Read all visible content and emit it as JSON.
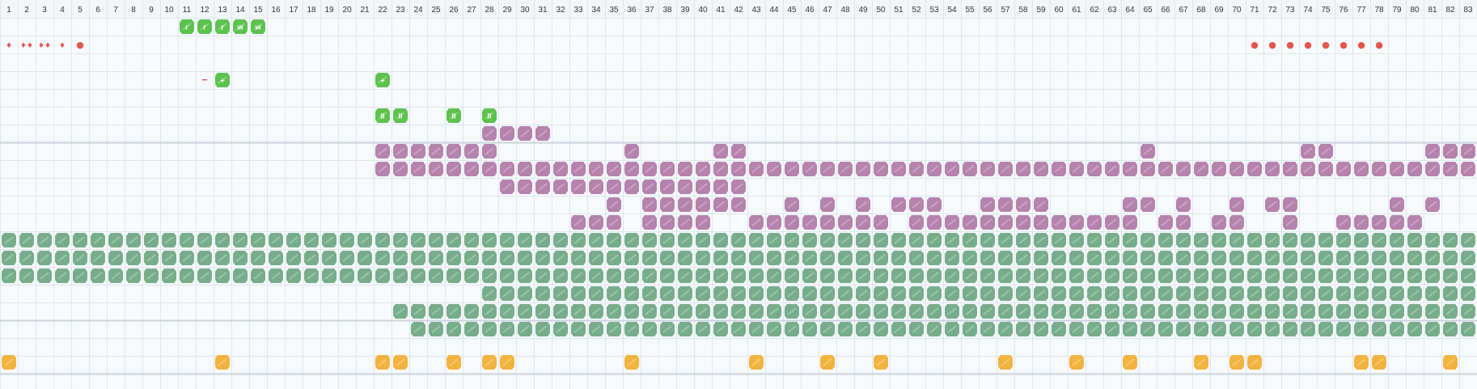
{
  "columns": 83,
  "colors": {
    "background": "#f7fafc",
    "header": "#f3f6f9",
    "grid_line": "#dde6ee",
    "section_line": "#c9d4de",
    "header_text": "#333333",
    "green_note": "#5ec24f",
    "purple_note": "#b583ad",
    "teal_note": "#78ad8c",
    "yellow_note": "#f3b33f",
    "red_marker": "#e5574e"
  },
  "effect_row1": [
    {
      "col": 11,
      "label": "r"
    },
    {
      "col": 12,
      "label": "r"
    },
    {
      "col": 13,
      "label": "r"
    },
    {
      "col": 14,
      "label": "w"
    },
    {
      "col": 15,
      "label": "w"
    }
  ],
  "dynamics_row": [
    {
      "col": 1,
      "label": "♦"
    },
    {
      "col": 2,
      "label": "♦♦"
    },
    {
      "col": 3,
      "label": "♦♦"
    },
    {
      "col": 4,
      "label": "♦"
    },
    {
      "col": 5,
      "label": "●"
    },
    {
      "col": 71,
      "label": "●"
    },
    {
      "col": 72,
      "label": "●"
    },
    {
      "col": 73,
      "label": "●"
    },
    {
      "col": 74,
      "label": "●"
    },
    {
      "col": 75,
      "label": "●"
    },
    {
      "col": 76,
      "label": "●"
    },
    {
      "col": 77,
      "label": "●"
    },
    {
      "col": 78,
      "label": "●"
    }
  ],
  "transpose_row": [
    {
      "col": 12,
      "label": "−",
      "type": "minus"
    },
    {
      "col": 13,
      "label": "+",
      "type": "note"
    },
    {
      "col": 22,
      "label": "+",
      "type": "note"
    }
  ],
  "pause_row": [
    {
      "col": 22,
      "label": "II"
    },
    {
      "col": 23,
      "label": "II"
    },
    {
      "col": 26,
      "label": "II"
    },
    {
      "col": 28,
      "label": "II"
    }
  ],
  "purple_rows": [
    [
      28,
      29,
      30,
      31
    ],
    [
      22,
      23,
      24,
      25,
      26,
      27,
      28,
      36,
      41,
      42,
      65,
      74,
      75,
      81,
      82,
      83
    ],
    [
      22,
      23,
      24,
      25,
      26,
      27,
      28,
      29,
      30,
      31,
      32,
      33,
      34,
      35,
      36,
      37,
      38,
      39,
      40,
      41,
      42,
      43,
      44,
      45,
      46,
      47,
      48,
      49,
      50,
      51,
      52,
      53,
      54,
      55,
      56,
      57,
      58,
      59,
      60,
      61,
      62,
      63,
      64,
      65,
      66,
      67,
      68,
      69,
      70,
      71,
      72,
      73,
      74,
      75,
      76,
      77,
      78,
      79,
      80,
      81,
      82,
      83
    ],
    [
      29,
      30,
      31,
      32,
      33,
      34,
      35,
      36,
      37,
      38,
      39,
      40,
      41,
      42
    ],
    [
      35,
      37,
      38,
      39,
      40,
      41,
      42,
      45,
      47,
      49,
      51,
      52,
      53,
      56,
      57,
      58,
      59,
      64,
      65,
      67,
      70,
      72,
      73,
      79,
      81
    ],
    [
      33,
      34,
      35,
      37,
      38,
      39,
      40,
      43,
      44,
      45,
      46,
      47,
      48,
      49,
      50,
      52,
      53,
      54,
      55,
      56,
      57,
      58,
      59,
      60,
      61,
      62,
      63,
      64,
      66,
      67,
      69,
      70,
      73,
      76,
      77,
      78,
      79,
      80
    ]
  ],
  "teal_rows": [
    {
      "from": 1,
      "to": 83
    },
    {
      "from": 1,
      "to": 83
    },
    {
      "from": 1,
      "to": 83
    },
    {
      "from": 28,
      "to": 83
    },
    {
      "from": 23,
      "to": 83
    },
    {
      "from": 24,
      "to": 83
    }
  ],
  "yellow_row": [
    1,
    13,
    22,
    23,
    26,
    28,
    29,
    36,
    43,
    47,
    50,
    57,
    61,
    64,
    68,
    70,
    71,
    77,
    78,
    82
  ]
}
